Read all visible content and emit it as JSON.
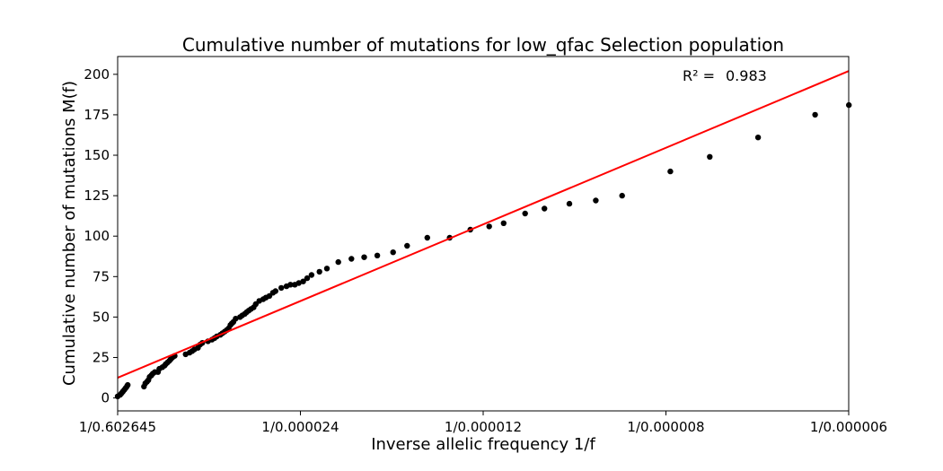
{
  "chart_data": {
    "type": "scatter",
    "title": "Cumulative number of mutations for low_qfac Selection population",
    "xlabel": "Inverse allelic frequency 1/f",
    "ylabel": "Cumulative number of mutations M(f)",
    "x_scale": "reciprocal",
    "xlim": [
      1.6594,
      166667
    ],
    "ylim": [
      -8,
      211
    ],
    "xticks": [
      {
        "value": 1.6594,
        "label": "1/0.602645"
      },
      {
        "value": 41667,
        "label": "1/0.000024"
      },
      {
        "value": 83333,
        "label": "1/0.000012"
      },
      {
        "value": 125000,
        "label": "1/0.000008"
      },
      {
        "value": 166667,
        "label": "1/0.000006"
      }
    ],
    "yticks": [
      {
        "value": 0,
        "label": "0"
      },
      {
        "value": 25,
        "label": "25"
      },
      {
        "value": 50,
        "label": "50"
      },
      {
        "value": 75,
        "label": "75"
      },
      {
        "value": 100,
        "label": "100"
      },
      {
        "value": 125,
        "label": "125"
      },
      {
        "value": 150,
        "label": "150"
      },
      {
        "value": 175,
        "label": "175"
      },
      {
        "value": 200,
        "label": "200"
      }
    ],
    "annotation": {
      "label": "R² =",
      "value": "0.983"
    },
    "grid": false,
    "colors": {
      "points": "#000000",
      "fit_line": "#ff0000"
    },
    "series": [
      {
        "type": "scatter",
        "x": [
          1.7,
          600,
          900,
          1200,
          1500,
          1800,
          2100,
          2300,
          6000,
          6300,
          6700,
          7000,
          7300,
          7700,
          8000,
          8500,
          9200,
          9500,
          10200,
          10700,
          11000,
          11400,
          11800,
          12100,
          12500,
          13000,
          15500,
          16400,
          17000,
          17500,
          18300,
          18800,
          19300,
          20600,
          21500,
          22100,
          22600,
          23400,
          23900,
          24400,
          24900,
          25300,
          25700,
          26000,
          26400,
          26900,
          27900,
          28400,
          29000,
          29400,
          29900,
          30400,
          31000,
          31500,
          32300,
          33200,
          33800,
          34600,
          35400,
          36000,
          37300,
          38500,
          39400,
          40400,
          41300,
          42300,
          43200,
          44200,
          46000,
          47700,
          50300,
          53300,
          56200,
          59200,
          62800,
          66000,
          70600,
          75700,
          80400,
          84700,
          88000,
          92900,
          97300,
          103000,
          109000,
          115000,
          126000,
          135000,
          146000,
          159000,
          166700
        ],
        "y": [
          1,
          2,
          3,
          4,
          5,
          6,
          7,
          8,
          7,
          9,
          10,
          11,
          13,
          14,
          15,
          16,
          16,
          18,
          19,
          20,
          21,
          22,
          23,
          24,
          25,
          26,
          27,
          28,
          29,
          30,
          31,
          33,
          34,
          35,
          36,
          37,
          38,
          39,
          40,
          41,
          42,
          43,
          45,
          46,
          47,
          49,
          50,
          51,
          52,
          53,
          54,
          55,
          56,
          58,
          60,
          61,
          62,
          63,
          65,
          66,
          68,
          69,
          70,
          70,
          71,
          72,
          74,
          76,
          78,
          80,
          84,
          86,
          87,
          88,
          90,
          94,
          99,
          99,
          104,
          106,
          108,
          114,
          117,
          120,
          122,
          125,
          140,
          149,
          161,
          175,
          181
        ]
      },
      {
        "type": "line",
        "name": "fit",
        "x": [
          1.7,
          166667
        ],
        "y": [
          12.5,
          202
        ]
      }
    ]
  }
}
